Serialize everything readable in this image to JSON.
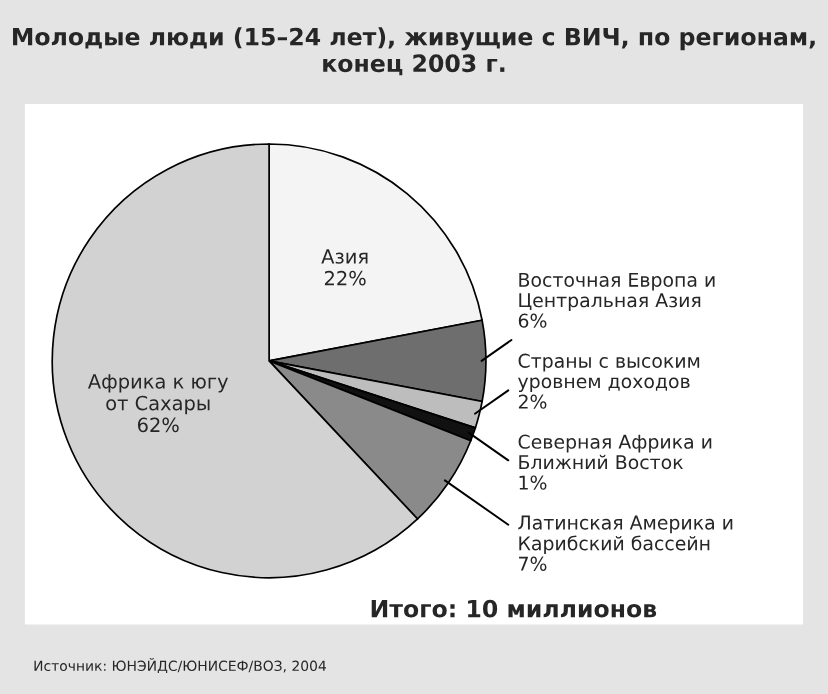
{
  "chart_data": {
    "type": "pie",
    "title": "Молодые люди (15–24 лет), живущие с ВИЧ, по регионам,\nконец 2003 г.",
    "categories": [
      "Азия",
      "Восточная Европа и\nЦентральная Азия",
      "Страны с высоким\nуровнем доходов",
      "Северная Африка и\nБлижний Восток",
      "Латинская Америка и\nКарибский бассейн",
      "Африка к югу\nот Сахары"
    ],
    "values": [
      22,
      6,
      2,
      1,
      7,
      62
    ],
    "value_labels": [
      "22%",
      "6%",
      "2%",
      "1%",
      "7%",
      "62%"
    ],
    "colors": [
      "#f4f4f4",
      "#6e6e6e",
      "#bdbdbd",
      "#111111",
      "#8a8a8a",
      "#d2d2d2"
    ],
    "annotations": [
      "Итого: 10 миллионов",
      "Источник: ЮНЭЙДС/ЮНИСЕФ/ВОЗ, 2004"
    ]
  }
}
